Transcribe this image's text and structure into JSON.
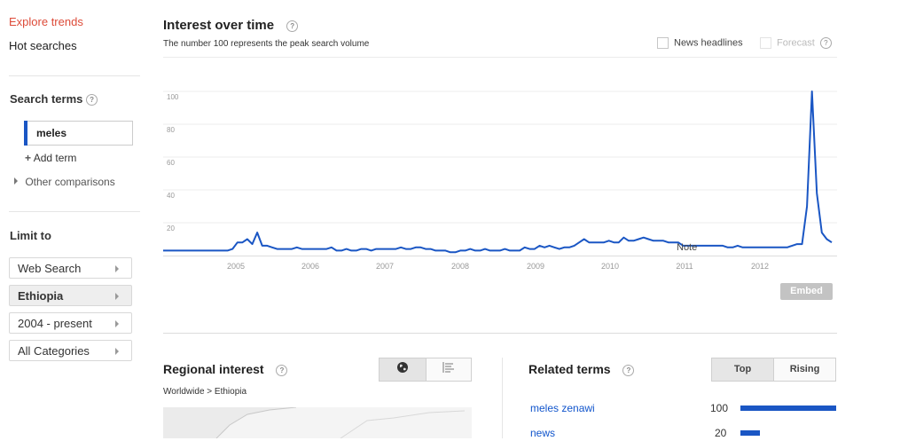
{
  "nav": {
    "explore": "Explore trends",
    "hot": "Hot searches"
  },
  "search_terms": {
    "title": "Search terms",
    "term": "meles",
    "add_term": "Add term",
    "other": "Other comparisons"
  },
  "limit": {
    "title": "Limit to",
    "web_search": "Web Search",
    "region": "Ethiopia",
    "time": "2004 - present",
    "categories": "All Categories"
  },
  "interest": {
    "title": "Interest over time",
    "subtitle": "The number 100 represents the peak search volume",
    "news_headlines": "News headlines",
    "forecast": "Forecast",
    "note": "Note",
    "embed": "Embed"
  },
  "chart_data": {
    "type": "line",
    "series": [
      {
        "values": [
          3,
          3,
          3,
          3,
          3,
          3,
          3,
          3,
          3,
          3,
          3,
          3,
          3,
          3,
          4,
          8,
          8,
          10,
          7,
          14,
          6,
          6,
          5,
          4,
          4,
          4,
          4,
          5,
          4,
          4,
          4,
          4,
          4,
          4,
          5,
          3,
          3,
          4,
          3,
          3,
          4,
          4,
          3,
          4,
          4,
          4,
          4,
          4,
          5,
          4,
          4,
          5,
          5,
          4,
          4,
          3,
          3,
          3,
          2,
          2,
          3,
          3,
          4,
          3,
          3,
          4,
          3,
          3,
          3,
          4,
          3,
          3,
          3,
          5,
          4,
          4,
          6,
          5,
          6,
          5,
          4,
          5,
          5,
          6,
          8,
          10,
          8,
          8,
          8,
          8,
          9,
          8,
          8,
          11,
          9,
          9,
          10,
          11,
          10,
          9,
          9,
          9,
          8,
          8,
          8,
          6,
          6,
          6,
          6,
          6,
          6,
          6,
          6,
          6,
          5,
          5,
          6,
          5,
          5,
          5,
          5,
          5,
          5,
          5,
          5,
          5,
          5,
          6,
          7,
          7,
          30,
          100,
          38,
          14,
          10,
          8
        ]
      }
    ],
    "x_ticks": [
      "2005",
      "2006",
      "2007",
      "2008",
      "2009",
      "2010",
      "2011",
      "2012"
    ],
    "y_ticks": [
      "100",
      "80",
      "60",
      "40",
      "20"
    ],
    "ylim": [
      0,
      100
    ],
    "line_color": "#1a56c4"
  },
  "regional": {
    "title": "Regional interest",
    "breadcrumb": "Worldwide > Ethiopia"
  },
  "related": {
    "title": "Related terms",
    "top": "Top",
    "rising": "Rising",
    "rows": [
      {
        "term": "meles zenawi",
        "value": "100",
        "level": 100
      },
      {
        "term": "news",
        "value": "20",
        "level": 20
      }
    ]
  }
}
